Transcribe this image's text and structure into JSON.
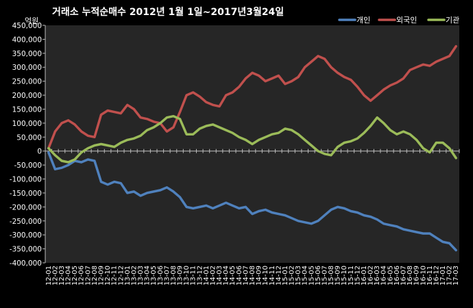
{
  "chart_data": {
    "type": "line",
    "title": "거래소 누적순매수 2012년 1월 1일~2017년3월24일",
    "unit_label": "억원",
    "ylim": [
      -400000,
      450000
    ],
    "yticks": [
      450000,
      400000,
      350000,
      300000,
      250000,
      200000,
      150000,
      100000,
      50000,
      0,
      -50000,
      -100000,
      -150000,
      -200000,
      -250000,
      -300000,
      -350000,
      -400000
    ],
    "ytick_labels": [
      "450,000",
      "400,000",
      "350,000",
      "300,000",
      "250,000",
      "200,000",
      "150,000",
      "100,000",
      "50,000",
      "0",
      "-50,000",
      "-100,000",
      "-150,000",
      "-200,000",
      "-250,000",
      "-300,000",
      "-350,000",
      "-400,000"
    ],
    "categories": [
      "12-01",
      "12-02",
      "12-03",
      "12-04",
      "12-05",
      "12-06",
      "12-07",
      "12-08",
      "12-09",
      "12-10",
      "12-11",
      "12-12",
      "13-01",
      "13-02",
      "13-03",
      "13-04",
      "13-05",
      "13-06",
      "13-07",
      "13-08",
      "13-09",
      "13-10",
      "13-11",
      "13-12",
      "14-01",
      "14-02",
      "14-03",
      "14-04",
      "14-05",
      "14-06",
      "14-07",
      "14-08",
      "14-09",
      "14-10",
      "14-11",
      "14-12",
      "15-01",
      "15-02",
      "15-03",
      "15-04",
      "15-05",
      "15-06",
      "15-07",
      "15-08",
      "15-09",
      "15-10",
      "15-11",
      "15-12",
      "16-01",
      "16-02",
      "16-03",
      "16-04",
      "16-05",
      "16-06",
      "16-07",
      "16-08",
      "16-09",
      "16-10",
      "16-11",
      "16-12",
      "17-01",
      "17-02",
      "17-03"
    ],
    "xticks_shown": [
      "12-01",
      "12-02",
      "12-03",
      "12-04",
      "12-05",
      "12-06",
      "12-07",
      "12-08",
      "12-09",
      "12-10",
      "12-11",
      "12-12",
      "13-01",
      "13-02",
      "13-03",
      "13-04",
      "13-05",
      "13-06",
      "13-07",
      "13-08",
      "13-09",
      "13-10",
      "13-11",
      "13-12",
      "14-01",
      "14-02",
      "14-03",
      "14-04",
      "14-05",
      "14-06",
      "14-07",
      "14-08",
      "14-09",
      "14-10",
      "14-11",
      "14-12",
      "15-01",
      "15-02",
      "15-03",
      "15-04",
      "15-05",
      "15-06",
      "15-07",
      "15-08",
      "15-09",
      "15-10",
      "15-11",
      "15-12",
      "16-01",
      "16-02",
      "16-03",
      "16-04",
      "16-05",
      "16-06",
      "16-07",
      "16-08",
      "16-09",
      "16-10",
      "16-11",
      "16-12",
      "17-01",
      "17-02",
      "17-03"
    ],
    "legend_position": "top-right",
    "grid": false,
    "series": [
      {
        "name": "개인",
        "color": "#4F81BD",
        "values": [
          -5000,
          -65000,
          -60000,
          -50000,
          -35000,
          -40000,
          -30000,
          -35000,
          -110000,
          -120000,
          -110000,
          -115000,
          -150000,
          -145000,
          -160000,
          -150000,
          -145000,
          -140000,
          -130000,
          -145000,
          -165000,
          -200000,
          -205000,
          -200000,
          -195000,
          -205000,
          -195000,
          -185000,
          -195000,
          -205000,
          -200000,
          -225000,
          -215000,
          -210000,
          -220000,
          -225000,
          -230000,
          -240000,
          -250000,
          -255000,
          -260000,
          -250000,
          -230000,
          -210000,
          -200000,
          -205000,
          -215000,
          -220000,
          -230000,
          -235000,
          -245000,
          -260000,
          -265000,
          -270000,
          -280000,
          -285000,
          -290000,
          -295000,
          -295000,
          -310000,
          -325000,
          -330000,
          -355000
        ]
      },
      {
        "name": "외국인",
        "color": "#C0504D",
        "values": [
          10000,
          70000,
          100000,
          110000,
          95000,
          70000,
          55000,
          50000,
          130000,
          145000,
          140000,
          135000,
          165000,
          150000,
          120000,
          115000,
          105000,
          100000,
          70000,
          85000,
          140000,
          200000,
          210000,
          195000,
          175000,
          165000,
          160000,
          200000,
          210000,
          230000,
          260000,
          280000,
          270000,
          250000,
          260000,
          270000,
          240000,
          250000,
          265000,
          300000,
          320000,
          340000,
          330000,
          300000,
          280000,
          265000,
          255000,
          230000,
          200000,
          180000,
          200000,
          220000,
          235000,
          245000,
          260000,
          290000,
          300000,
          310000,
          305000,
          320000,
          330000,
          340000,
          375000
        ]
      },
      {
        "name": "기관",
        "color": "#9BBB59",
        "values": [
          10000,
          -15000,
          -35000,
          -40000,
          -30000,
          -5000,
          10000,
          20000,
          25000,
          20000,
          15000,
          30000,
          40000,
          45000,
          55000,
          75000,
          85000,
          100000,
          120000,
          125000,
          115000,
          60000,
          60000,
          80000,
          90000,
          95000,
          85000,
          75000,
          65000,
          50000,
          40000,
          25000,
          40000,
          50000,
          60000,
          65000,
          80000,
          75000,
          60000,
          40000,
          20000,
          0,
          -10000,
          -15000,
          15000,
          30000,
          35000,
          45000,
          65000,
          90000,
          120000,
          100000,
          75000,
          60000,
          70000,
          60000,
          40000,
          10000,
          -5000,
          30000,
          30000,
          10000,
          -25000
        ]
      }
    ]
  }
}
